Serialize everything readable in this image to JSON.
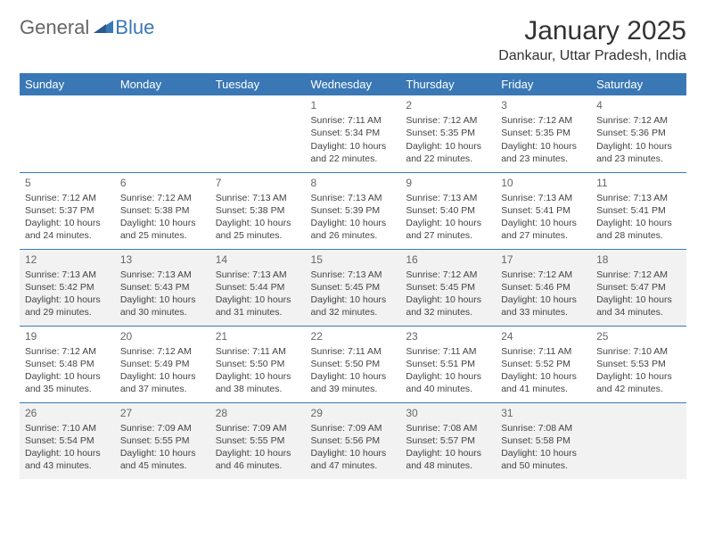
{
  "logo": {
    "general": "General",
    "blue": "Blue"
  },
  "title": "January 2025",
  "location": "Dankaur, Uttar Pradesh, India",
  "colors": {
    "header_bg": "#3a78b5",
    "header_text": "#ffffff",
    "shade_bg": "#f2f2f2",
    "border": "#3a78b5",
    "logo_gray": "#666666",
    "logo_blue": "#3a78b5"
  },
  "weekdays": [
    "Sunday",
    "Monday",
    "Tuesday",
    "Wednesday",
    "Thursday",
    "Friday",
    "Saturday"
  ],
  "weeks": [
    {
      "shaded": false,
      "days": [
        null,
        null,
        null,
        {
          "n": "1",
          "sunrise": "7:11 AM",
          "sunset": "5:34 PM",
          "daylight": "10 hours and 22 minutes."
        },
        {
          "n": "2",
          "sunrise": "7:12 AM",
          "sunset": "5:35 PM",
          "daylight": "10 hours and 22 minutes."
        },
        {
          "n": "3",
          "sunrise": "7:12 AM",
          "sunset": "5:35 PM",
          "daylight": "10 hours and 23 minutes."
        },
        {
          "n": "4",
          "sunrise": "7:12 AM",
          "sunset": "5:36 PM",
          "daylight": "10 hours and 23 minutes."
        }
      ]
    },
    {
      "shaded": false,
      "days": [
        {
          "n": "5",
          "sunrise": "7:12 AM",
          "sunset": "5:37 PM",
          "daylight": "10 hours and 24 minutes."
        },
        {
          "n": "6",
          "sunrise": "7:12 AM",
          "sunset": "5:38 PM",
          "daylight": "10 hours and 25 minutes."
        },
        {
          "n": "7",
          "sunrise": "7:13 AM",
          "sunset": "5:38 PM",
          "daylight": "10 hours and 25 minutes."
        },
        {
          "n": "8",
          "sunrise": "7:13 AM",
          "sunset": "5:39 PM",
          "daylight": "10 hours and 26 minutes."
        },
        {
          "n": "9",
          "sunrise": "7:13 AM",
          "sunset": "5:40 PM",
          "daylight": "10 hours and 27 minutes."
        },
        {
          "n": "10",
          "sunrise": "7:13 AM",
          "sunset": "5:41 PM",
          "daylight": "10 hours and 27 minutes."
        },
        {
          "n": "11",
          "sunrise": "7:13 AM",
          "sunset": "5:41 PM",
          "daylight": "10 hours and 28 minutes."
        }
      ]
    },
    {
      "shaded": true,
      "days": [
        {
          "n": "12",
          "sunrise": "7:13 AM",
          "sunset": "5:42 PM",
          "daylight": "10 hours and 29 minutes."
        },
        {
          "n": "13",
          "sunrise": "7:13 AM",
          "sunset": "5:43 PM",
          "daylight": "10 hours and 30 minutes."
        },
        {
          "n": "14",
          "sunrise": "7:13 AM",
          "sunset": "5:44 PM",
          "daylight": "10 hours and 31 minutes."
        },
        {
          "n": "15",
          "sunrise": "7:13 AM",
          "sunset": "5:45 PM",
          "daylight": "10 hours and 32 minutes."
        },
        {
          "n": "16",
          "sunrise": "7:12 AM",
          "sunset": "5:45 PM",
          "daylight": "10 hours and 32 minutes."
        },
        {
          "n": "17",
          "sunrise": "7:12 AM",
          "sunset": "5:46 PM",
          "daylight": "10 hours and 33 minutes."
        },
        {
          "n": "18",
          "sunrise": "7:12 AM",
          "sunset": "5:47 PM",
          "daylight": "10 hours and 34 minutes."
        }
      ]
    },
    {
      "shaded": false,
      "days": [
        {
          "n": "19",
          "sunrise": "7:12 AM",
          "sunset": "5:48 PM",
          "daylight": "10 hours and 35 minutes."
        },
        {
          "n": "20",
          "sunrise": "7:12 AM",
          "sunset": "5:49 PM",
          "daylight": "10 hours and 37 minutes."
        },
        {
          "n": "21",
          "sunrise": "7:11 AM",
          "sunset": "5:50 PM",
          "daylight": "10 hours and 38 minutes."
        },
        {
          "n": "22",
          "sunrise": "7:11 AM",
          "sunset": "5:50 PM",
          "daylight": "10 hours and 39 minutes."
        },
        {
          "n": "23",
          "sunrise": "7:11 AM",
          "sunset": "5:51 PM",
          "daylight": "10 hours and 40 minutes."
        },
        {
          "n": "24",
          "sunrise": "7:11 AM",
          "sunset": "5:52 PM",
          "daylight": "10 hours and 41 minutes."
        },
        {
          "n": "25",
          "sunrise": "7:10 AM",
          "sunset": "5:53 PM",
          "daylight": "10 hours and 42 minutes."
        }
      ]
    },
    {
      "shaded": true,
      "days": [
        {
          "n": "26",
          "sunrise": "7:10 AM",
          "sunset": "5:54 PM",
          "daylight": "10 hours and 43 minutes."
        },
        {
          "n": "27",
          "sunrise": "7:09 AM",
          "sunset": "5:55 PM",
          "daylight": "10 hours and 45 minutes."
        },
        {
          "n": "28",
          "sunrise": "7:09 AM",
          "sunset": "5:55 PM",
          "daylight": "10 hours and 46 minutes."
        },
        {
          "n": "29",
          "sunrise": "7:09 AM",
          "sunset": "5:56 PM",
          "daylight": "10 hours and 47 minutes."
        },
        {
          "n": "30",
          "sunrise": "7:08 AM",
          "sunset": "5:57 PM",
          "daylight": "10 hours and 48 minutes."
        },
        {
          "n": "31",
          "sunrise": "7:08 AM",
          "sunset": "5:58 PM",
          "daylight": "10 hours and 50 minutes."
        },
        null
      ]
    }
  ]
}
